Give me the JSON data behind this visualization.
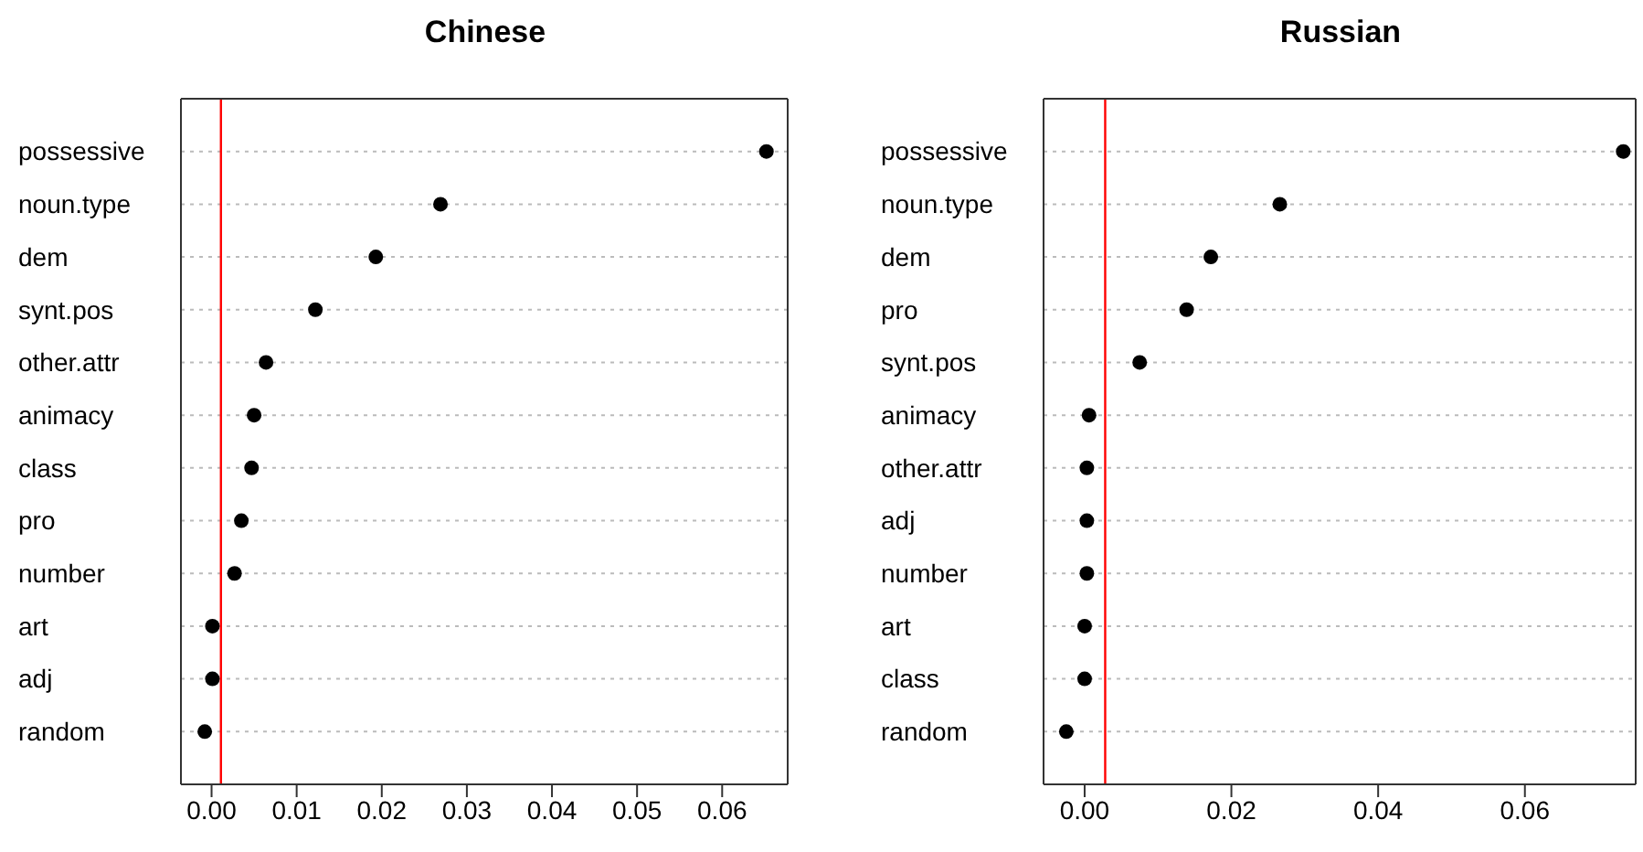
{
  "chart_data": [
    {
      "type": "scatter",
      "orientation": "horizontal",
      "title": "Chinese",
      "categories": [
        "possessive",
        "noun.type",
        "dem",
        "synt.pos",
        "other.attr",
        "animacy",
        "class",
        "pro",
        "number",
        "art",
        "adj",
        "random"
      ],
      "values": [
        0.0652,
        0.0269,
        0.0193,
        0.0122,
        0.0064,
        0.005,
        0.0047,
        0.0035,
        0.0027,
        0.0001,
        0.0001,
        -0.0008
      ],
      "color": "#000000",
      "marker": "circle",
      "xlim": [
        -0.0036,
        0.0677
      ],
      "xticks": [
        {
          "value": 0,
          "label": "0.00"
        },
        {
          "value": 0.01,
          "label": "0.01"
        },
        {
          "value": 0.02,
          "label": "0.02"
        },
        {
          "value": 0.03,
          "label": "0.03"
        },
        {
          "value": 0.04,
          "label": "0.04"
        },
        {
          "value": 0.05,
          "label": "0.05"
        },
        {
          "value": 0.06,
          "label": "0.06"
        }
      ],
      "grid": "y",
      "ref_lines": [
        {
          "axis": "x",
          "value": 0.0011,
          "color": "#ff0000"
        }
      ]
    },
    {
      "type": "scatter",
      "orientation": "horizontal",
      "title": "Russian",
      "categories": [
        "possessive",
        "noun.type",
        "dem",
        "pro",
        "synt.pos",
        "animacy",
        "other.attr",
        "adj",
        "number",
        "art",
        "class",
        "random"
      ],
      "values": [
        0.0734,
        0.0266,
        0.0172,
        0.0139,
        0.0075,
        0.0006,
        0.0003,
        0.0003,
        0.0003,
        0.0,
        0.0,
        -0.0025
      ],
      "color": "#000000",
      "marker": "circle",
      "xlim": [
        -0.0056,
        0.0751
      ],
      "xticks": [
        {
          "value": 0,
          "label": "0.00"
        },
        {
          "value": 0.02,
          "label": "0.02"
        },
        {
          "value": 0.04,
          "label": "0.04"
        },
        {
          "value": 0.06,
          "label": "0.06"
        }
      ],
      "grid": "y",
      "ref_lines": [
        {
          "axis": "x",
          "value": 0.0028,
          "color": "#ff0000"
        }
      ]
    }
  ]
}
